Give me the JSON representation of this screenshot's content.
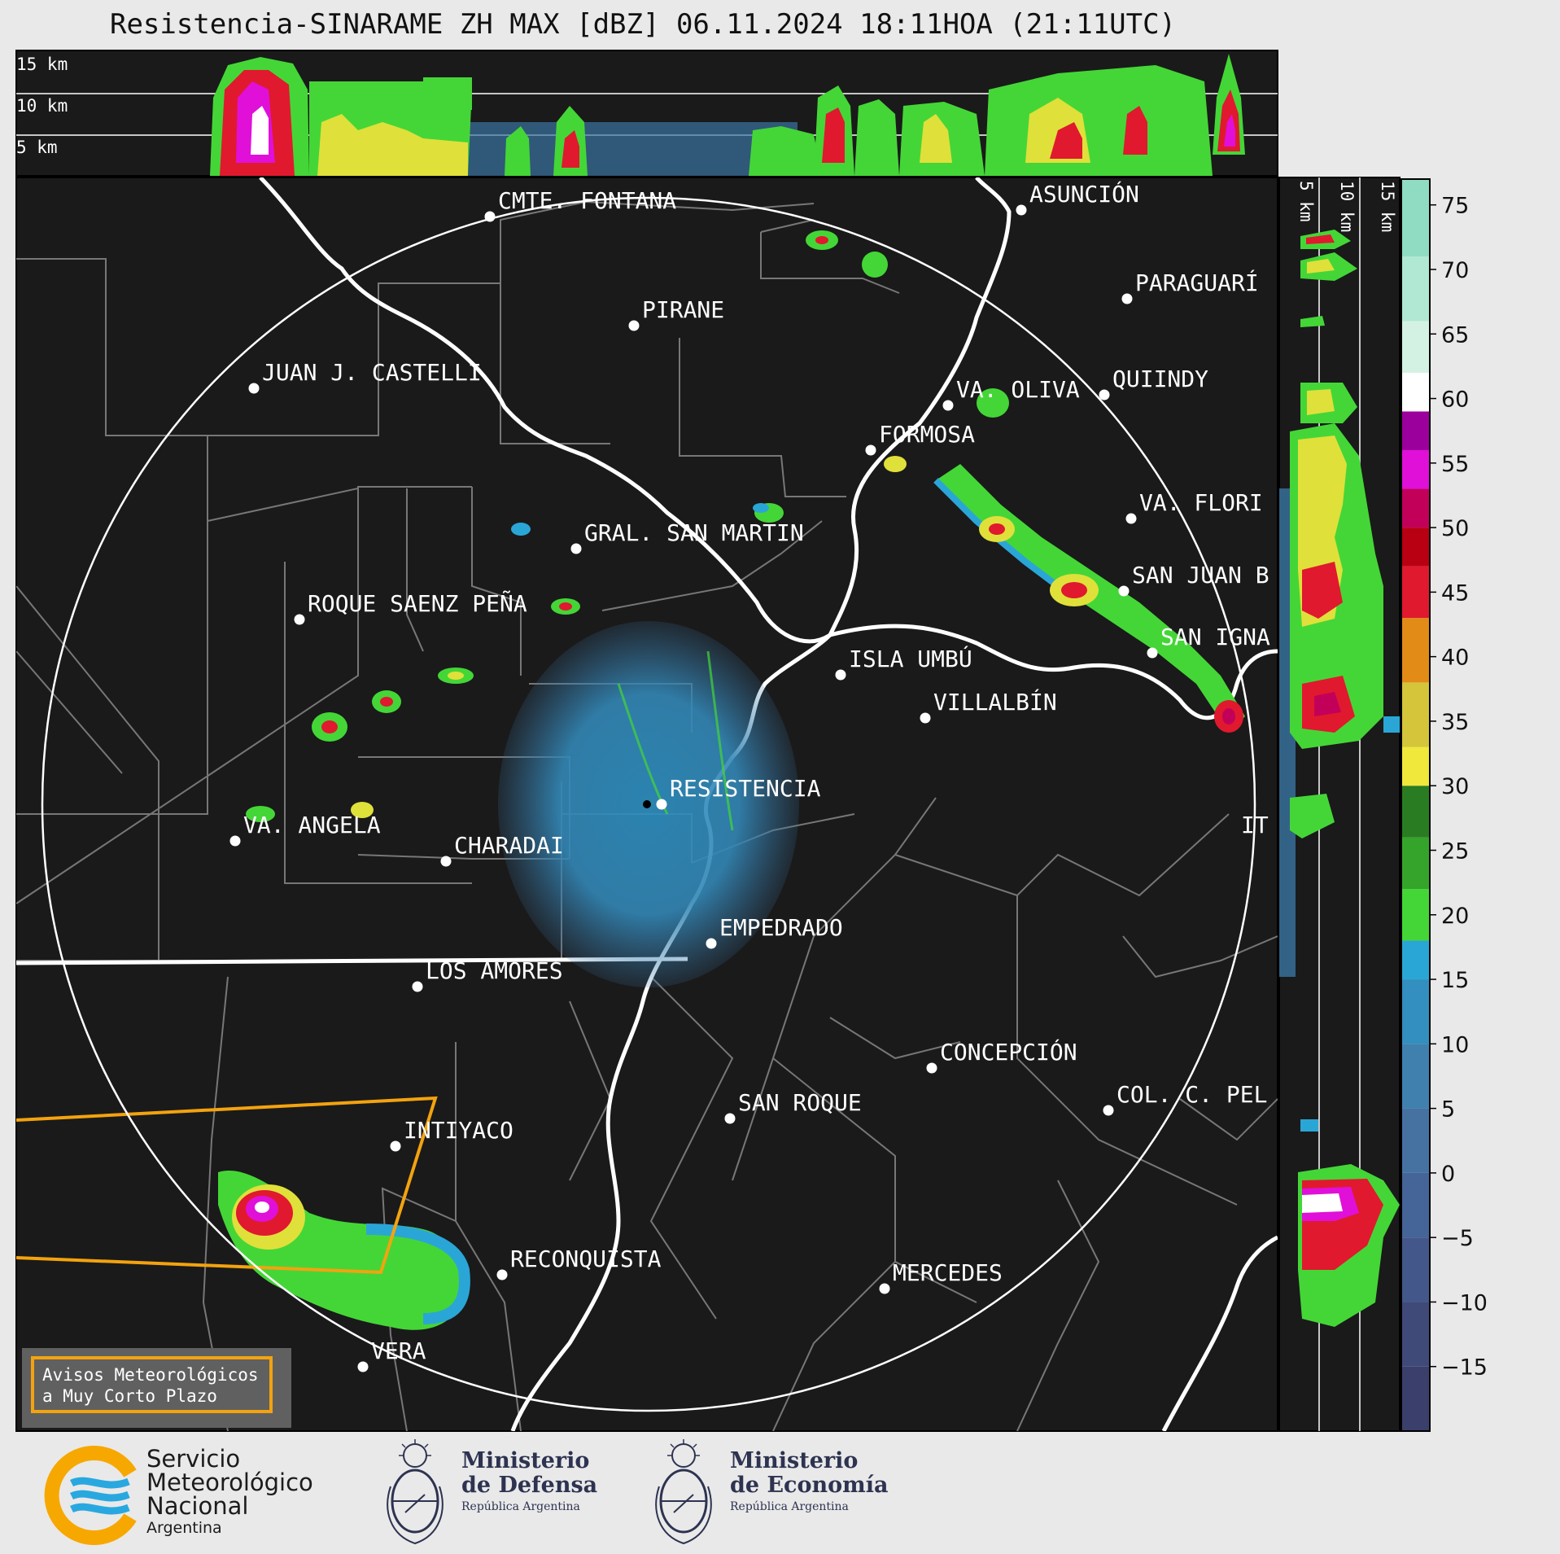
{
  "title": "Resistencia-SINARAME ZH MAX [dBZ] 06.11.2024 18:11HOA (21:11UTC)",
  "top_panel": {
    "altitude_labels": [
      "15 km",
      "10 km",
      "5 km"
    ]
  },
  "side_panel": {
    "altitude_labels": [
      "5 km",
      "10 km",
      "15 km"
    ]
  },
  "cities": [
    {
      "name": "CMTE. FONTANA"
    },
    {
      "name": "PIRANE"
    },
    {
      "name": "JUAN J. CASTELLI"
    },
    {
      "name": "ASUNCIÓN"
    },
    {
      "name": "PARAGUARÍ"
    },
    {
      "name": "VA. OLIVA"
    },
    {
      "name": "QUIINDY"
    },
    {
      "name": "FORMOSA"
    },
    {
      "name": "VA. FLORI"
    },
    {
      "name": "GRAL. SAN MARTIN"
    },
    {
      "name": "SAN JUAN B"
    },
    {
      "name": "ROQUE SAENZ PEÑA"
    },
    {
      "name": "SAN IGNA"
    },
    {
      "name": "ISLA UMBÚ"
    },
    {
      "name": "VILLALBÍN"
    },
    {
      "name": "RESISTENCIA"
    },
    {
      "name": "VA. ANGELA"
    },
    {
      "name": "CHARADAI"
    },
    {
      "name": "IT"
    },
    {
      "name": "EMPEDRADO"
    },
    {
      "name": "LOS AMORES"
    },
    {
      "name": "CONCEPCIÓN"
    },
    {
      "name": "SAN ROQUE"
    },
    {
      "name": "COL. C. PEL"
    },
    {
      "name": "INTIYACO"
    },
    {
      "name": "RECONQUISTA"
    },
    {
      "name": "MERCEDES"
    },
    {
      "name": "VERA"
    }
  ],
  "colorbar": {
    "ticks": [
      "75",
      "70",
      "65",
      "60",
      "55",
      "50",
      "45",
      "40",
      "35",
      "30",
      "25",
      "20",
      "15",
      "10",
      "5",
      "0",
      "−5",
      "−10",
      "−15"
    ],
    "min": -20,
    "max": 77,
    "bands": [
      {
        "from": -20,
        "to": -15,
        "color": "#3b3f6b"
      },
      {
        "from": -15,
        "to": -10,
        "color": "#3f4a78"
      },
      {
        "from": -10,
        "to": -5,
        "color": "#43578a"
      },
      {
        "from": -5,
        "to": 0,
        "color": "#456497"
      },
      {
        "from": 0,
        "to": 5,
        "color": "#4672a2"
      },
      {
        "from": 5,
        "to": 10,
        "color": "#3f80ae"
      },
      {
        "from": 10,
        "to": 15,
        "color": "#328fbf"
      },
      {
        "from": 15,
        "to": 18,
        "color": "#2aa6d6"
      },
      {
        "from": 18,
        "to": 22,
        "color": "#44d637"
      },
      {
        "from": 22,
        "to": 26,
        "color": "#34a52a"
      },
      {
        "from": 26,
        "to": 30,
        "color": "#2a7c22"
      },
      {
        "from": 30,
        "to": 33,
        "color": "#f0e83a"
      },
      {
        "from": 33,
        "to": 38,
        "color": "#d4c53a"
      },
      {
        "from": 38,
        "to": 43,
        "color": "#e28b17"
      },
      {
        "from": 43,
        "to": 47,
        "color": "#e0192e"
      },
      {
        "from": 47,
        "to": 50,
        "color": "#b80012"
      },
      {
        "from": 50,
        "to": 53,
        "color": "#c2005a"
      },
      {
        "from": 53,
        "to": 56,
        "color": "#e010d8"
      },
      {
        "from": 56,
        "to": 59,
        "color": "#9c009c"
      },
      {
        "from": 59,
        "to": 62,
        "color": "#ffffff"
      },
      {
        "from": 62,
        "to": 66,
        "color": "#d4f2e4"
      },
      {
        "from": 66,
        "to": 71,
        "color": "#b0e8d3"
      },
      {
        "from": 71,
        "to": 77,
        "color": "#8fdcc2"
      }
    ]
  },
  "warning_box": {
    "line1": "Avisos Meteorológicos",
    "line2": "a Muy Corto Plazo"
  },
  "footer": {
    "smn": {
      "line1": "Servicio",
      "line2": "Meteorológico",
      "line3": "Nacional",
      "line4": "Argentina"
    },
    "defensa": {
      "line1": "Ministerio",
      "line2": "de Defensa",
      "line3": "República Argentina"
    },
    "economia": {
      "line1": "Ministerio",
      "line2": "de Economía",
      "line3": "República Argentina"
    }
  },
  "colors": {
    "map_bg": "#1a1a1a",
    "warning": "#f3a30f",
    "smn_orange": "#f7a800",
    "smn_blue": "#29a8e0"
  }
}
